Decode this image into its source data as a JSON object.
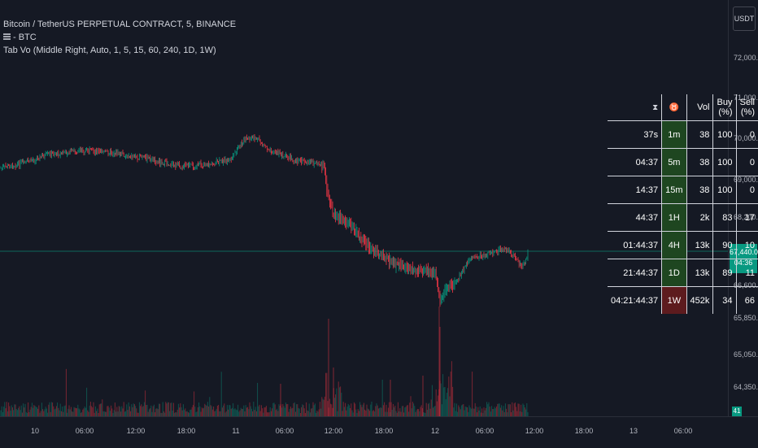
{
  "legend": {
    "title": "Bitcoin / TetherUS PERPETUAL CONTRACT, 5, BINANCE",
    "subtitle": "- BTC",
    "indicator": "Tab Vo (Middle Right, Auto, 1, 5, 15, 60, 240, 1D, 1W)"
  },
  "currency_button": "USDT",
  "price_axis": [
    "72,000.0",
    "71,000.0",
    "70,000.0",
    "69,000.0",
    "68,200.0",
    "66,600.0",
    "65,850.0",
    "65,050.0",
    "64,350.0"
  ],
  "price_tag": {
    "value": "67,440.0",
    "countdown": "04:36"
  },
  "volume_tag": "41",
  "time_axis": [
    "10",
    "06:00",
    "12:00",
    "18:00",
    "11",
    "06:00",
    "12:00",
    "18:00",
    "12",
    "06:00",
    "12:00",
    "18:00",
    "13",
    "06:00"
  ],
  "colors": {
    "up": "#089981",
    "down": "#f23645",
    "background": "#151924",
    "tf_up": "#1e4620",
    "tf_down": "#5d1b1e"
  },
  "table": {
    "header_icons": [
      "hourglass-icon",
      "bull-icon"
    ],
    "headers": [
      "Vol",
      "Buy (%)",
      "Sell (%)"
    ],
    "rows": [
      {
        "remaining": "37s",
        "tf": "1m",
        "vol": "38",
        "buy": "100",
        "sell": "0",
        "dir": "up"
      },
      {
        "remaining": "04:37",
        "tf": "5m",
        "vol": "38",
        "buy": "100",
        "sell": "0",
        "dir": "up"
      },
      {
        "remaining": "14:37",
        "tf": "15m",
        "vol": "38",
        "buy": "100",
        "sell": "0",
        "dir": "up"
      },
      {
        "remaining": "44:37",
        "tf": "1H",
        "vol": "2k",
        "buy": "83",
        "sell": "17",
        "dir": "up"
      },
      {
        "remaining": "01:44:37",
        "tf": "4H",
        "vol": "13k",
        "buy": "90",
        "sell": "10",
        "dir": "up"
      },
      {
        "remaining": "21:44:37",
        "tf": "1D",
        "vol": "13k",
        "buy": "89",
        "sell": "11",
        "dir": "up"
      },
      {
        "remaining": "04:21:44:37",
        "tf": "1W",
        "vol": "452k",
        "buy": "34",
        "sell": "66",
        "dir": "down"
      }
    ]
  }
}
